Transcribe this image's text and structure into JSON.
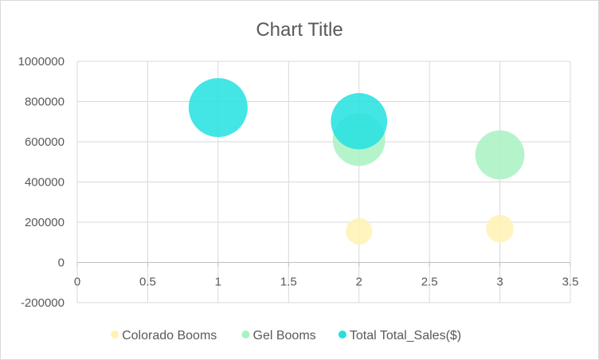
{
  "chart_data": {
    "type": "bubble",
    "title": "Chart Title",
    "xlabel": "",
    "ylabel": "",
    "xlim": [
      0,
      3.5
    ],
    "ylim": [
      -200000,
      1000000
    ],
    "x_ticks": [
      "0",
      "0.5",
      "1",
      "1.5",
      "2",
      "2.5",
      "3",
      "3.5"
    ],
    "y_ticks": [
      "-200000",
      "0",
      "200000",
      "400000",
      "600000",
      "800000",
      "1000000"
    ],
    "grid": true,
    "legend_position": "bottom",
    "series": [
      {
        "name": "Colorado Booms",
        "color": "#FFF2B3",
        "points": [
          {
            "x": 2,
            "y": 155000,
            "size": 155000
          },
          {
            "x": 3,
            "y": 168000,
            "size": 168000
          }
        ]
      },
      {
        "name": "Gel Booms",
        "color": "#A8F2C2",
        "points": [
          {
            "x": 2,
            "y": 610000,
            "size": 610000
          },
          {
            "x": 3,
            "y": 535000,
            "size": 535000
          }
        ]
      },
      {
        "name": "Total Total_Sales($)",
        "color": "#22E0E0",
        "points": [
          {
            "x": 1,
            "y": 770000,
            "size": 770000
          },
          {
            "x": 2,
            "y": 702000,
            "size": 702000
          }
        ]
      }
    ]
  }
}
